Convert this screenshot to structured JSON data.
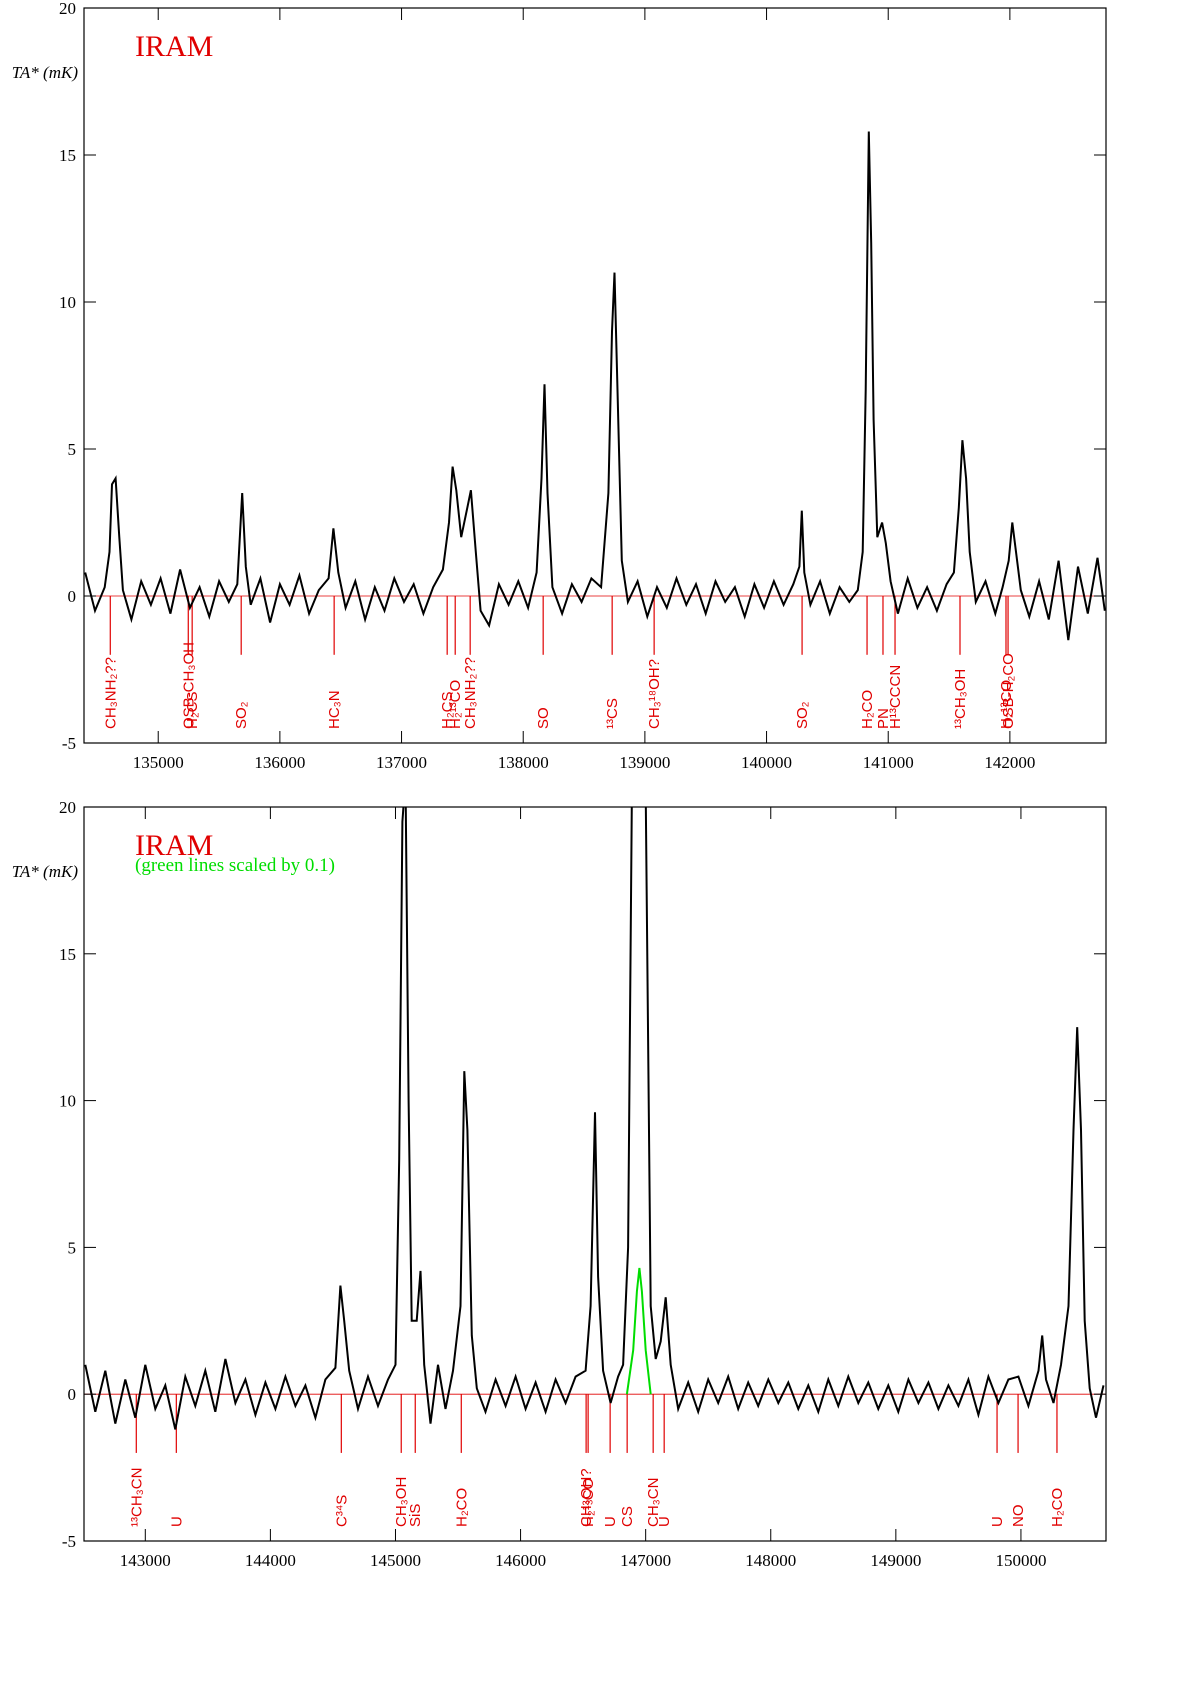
{
  "chart_data": [
    {
      "type": "line",
      "ylabel": "TA* (mK)",
      "annotations": [
        {
          "text": "IRAM",
          "color": "#e00000"
        }
      ],
      "xlim": [
        134390,
        142790
      ],
      "ylim": [
        -5,
        20
      ],
      "xticks": [
        135000,
        136000,
        137000,
        138000,
        139000,
        140000,
        141000,
        142000
      ],
      "yticks": [
        -5,
        0,
        5,
        10,
        15,
        20
      ],
      "series": [
        {
          "color": "#000000",
          "x": [
            134400,
            134480,
            134560,
            134600,
            134620,
            134650,
            134680,
            134710,
            134780,
            134860,
            134940,
            135020,
            135100,
            135180,
            135260,
            135340,
            135420,
            135500,
            135580,
            135650,
            135690,
            135720,
            135760,
            135840,
            135920,
            136000,
            136080,
            136160,
            136240,
            136320,
            136400,
            136440,
            136480,
            136540,
            136620,
            136700,
            136780,
            136860,
            136940,
            137020,
            137100,
            137180,
            137260,
            137340,
            137390,
            137420,
            137450,
            137490,
            137540,
            137570,
            137610,
            137650,
            137720,
            137800,
            137880,
            137960,
            138040,
            138110,
            138150,
            138175,
            138200,
            138240,
            138320,
            138400,
            138480,
            138560,
            138640,
            138700,
            138730,
            138750,
            138775,
            138810,
            138860,
            138940,
            139020,
            139100,
            139180,
            139260,
            139340,
            139420,
            139500,
            139580,
            139660,
            139740,
            139820,
            139900,
            139980,
            140060,
            140140,
            140220,
            140270,
            140290,
            140310,
            140360,
            140440,
            140520,
            140600,
            140680,
            140750,
            140790,
            140815,
            140840,
            140860,
            140880,
            140910,
            140950,
            140980,
            141020,
            141080,
            141160,
            141240,
            141320,
            141400,
            141480,
            141540,
            141580,
            141610,
            141640,
            141670,
            141720,
            141800,
            141880,
            141940,
            141990,
            142020,
            142050,
            142090,
            142160,
            142240,
            142320,
            142400,
            142480,
            142560,
            142640,
            142720,
            142780
          ],
          "values": [
            0.8,
            -0.5,
            0.3,
            1.5,
            3.8,
            4.0,
            2.0,
            0.2,
            -0.8,
            0.5,
            -0.3,
            0.6,
            -0.6,
            0.9,
            -0.4,
            0.3,
            -0.7,
            0.5,
            -0.2,
            0.4,
            3.5,
            1.0,
            -0.3,
            0.6,
            -0.9,
            0.4,
            -0.3,
            0.7,
            -0.6,
            0.2,
            0.6,
            2.3,
            0.8,
            -0.4,
            0.5,
            -0.8,
            0.3,
            -0.5,
            0.6,
            -0.2,
            0.4,
            -0.6,
            0.3,
            0.9,
            2.5,
            4.4,
            3.6,
            2.0,
            3.0,
            3.6,
            1.5,
            -0.5,
            -1.0,
            0.4,
            -0.3,
            0.5,
            -0.4,
            0.8,
            4.0,
            7.2,
            3.5,
            0.3,
            -0.6,
            0.4,
            -0.2,
            0.6,
            0.3,
            3.5,
            9.0,
            11.0,
            7.0,
            1.2,
            -0.2,
            0.5,
            -0.7,
            0.3,
            -0.4,
            0.6,
            -0.3,
            0.4,
            -0.6,
            0.5,
            -0.2,
            0.3,
            -0.7,
            0.4,
            -0.4,
            0.5,
            -0.3,
            0.4,
            1.0,
            2.9,
            0.8,
            -0.3,
            0.5,
            -0.6,
            0.3,
            -0.2,
            0.2,
            1.5,
            7.0,
            15.8,
            12.0,
            6.0,
            2.0,
            2.5,
            1.8,
            0.5,
            -0.6,
            0.6,
            -0.4,
            0.3,
            -0.5,
            0.4,
            0.8,
            3.0,
            5.3,
            4.0,
            1.5,
            -0.2,
            0.5,
            -0.6,
            0.3,
            1.2,
            2.5,
            1.5,
            0.2,
            -0.7,
            0.5,
            -0.8,
            1.2,
            -1.5,
            1.0,
            -0.6,
            1.3,
            -0.5
          ]
        }
      ],
      "markers": {
        "color": "#e00000",
        "x": [
          134606,
          135247,
          135279,
          135682,
          136446,
          137375,
          137441,
          137564,
          138164,
          138731,
          139076,
          140292,
          140826,
          140957,
          141056,
          141590,
          141968,
          141985
        ],
        "labels": [
          "CH₃NH₂??",
          "OSB-CH₃OH",
          "H₂CS",
          "SO₂",
          "HC₃N",
          "H₂CS",
          "H₂¹³CO",
          "CH₃NH₂??",
          "SO",
          "¹³CS",
          "CH₃¹⁸OH?",
          "SO₂",
          "H₂CO",
          "PN",
          "H¹³CCCN",
          "¹³CH₃OH",
          "H₂¹³CO",
          "OSB-H₂CO"
        ]
      }
    },
    {
      "type": "line",
      "ylabel": "TA* (mK)",
      "annotations": [
        {
          "text": "IRAM",
          "color": "#e00000"
        },
        {
          "text": "(green lines scaled by 0.1)",
          "color": "#00dd00"
        }
      ],
      "xlim": [
        142510,
        150680
      ],
      "ylim": [
        -5,
        20
      ],
      "xticks": [
        143000,
        144000,
        145000,
        146000,
        147000,
        148000,
        149000,
        150000
      ],
      "yticks": [
        -5,
        0,
        5,
        10,
        15,
        20
      ],
      "series": [
        {
          "color": "#000000",
          "x": [
            142520,
            142600,
            142680,
            142760,
            142840,
            142920,
            143000,
            143080,
            143160,
            143240,
            143320,
            143400,
            143480,
            143560,
            143640,
            143720,
            143800,
            143880,
            143960,
            144040,
            144120,
            144200,
            144280,
            144360,
            144440,
            144520,
            144560,
            144590,
            144630,
            144700,
            144780,
            144860,
            144940,
            145000,
            145030,
            145055,
            145080,
            145105,
            145130,
            145170,
            145200,
            145230,
            145280,
            145340,
            145400,
            145460,
            145520,
            145550,
            145575,
            145610,
            145650,
            145720,
            145800,
            145880,
            145960,
            146040,
            146120,
            146200,
            146280,
            146360,
            146440,
            146520,
            146560,
            146595,
            146620,
            146660,
            146720,
            146780,
            146820,
            146860,
            146890,
            146950,
            147000,
            147040,
            147080,
            147120,
            147160,
            147200,
            147260,
            147340,
            147420,
            147500,
            147580,
            147660,
            147740,
            147820,
            147900,
            147980,
            148060,
            148140,
            148220,
            148300,
            148380,
            148460,
            148540,
            148620,
            148700,
            148780,
            148860,
            148940,
            149020,
            149100,
            149180,
            149260,
            149340,
            149420,
            149500,
            149580,
            149660,
            149740,
            149820,
            149900,
            149980,
            150060,
            150140,
            150170,
            150200,
            150260,
            150320,
            150380,
            150420,
            150450,
            150480,
            150510,
            150550,
            150600,
            150660
          ],
          "values": [
            1.0,
            -0.6,
            0.8,
            -1.0,
            0.5,
            -0.8,
            1.0,
            -0.5,
            0.3,
            -1.2,
            0.6,
            -0.4,
            0.8,
            -0.6,
            1.2,
            -0.3,
            0.5,
            -0.7,
            0.4,
            -0.5,
            0.6,
            -0.4,
            0.3,
            -0.8,
            0.5,
            0.9,
            3.7,
            2.5,
            0.8,
            -0.5,
            0.6,
            -0.4,
            0.5,
            1.0,
            8.0,
            19.5,
            21.0,
            10.0,
            2.5,
            2.5,
            4.2,
            1.0,
            -1.0,
            1.0,
            -0.5,
            0.8,
            3.0,
            11.0,
            9.0,
            2.0,
            0.2,
            -0.6,
            0.5,
            -0.4,
            0.6,
            -0.5,
            0.4,
            -0.6,
            0.5,
            -0.3,
            0.6,
            0.8,
            3.0,
            9.6,
            4.0,
            0.8,
            -0.3,
            0.6,
            1.0,
            5.0,
            20.5,
            21.0,
            20.5,
            3.0,
            1.2,
            1.8,
            3.3,
            1.0,
            -0.5,
            0.4,
            -0.6,
            0.5,
            -0.3,
            0.6,
            -0.5,
            0.4,
            -0.4,
            0.5,
            -0.3,
            0.4,
            -0.5,
            0.3,
            -0.6,
            0.5,
            -0.4,
            0.6,
            -0.3,
            0.4,
            -0.5,
            0.3,
            -0.6,
            0.5,
            -0.3,
            0.4,
            -0.5,
            0.3,
            -0.4,
            0.5,
            -0.7,
            0.6,
            -0.3,
            0.5,
            0.6,
            -0.4,
            0.8,
            2.0,
            0.5,
            -0.3,
            1.0,
            3.0,
            9.0,
            12.5,
            9.0,
            2.5,
            0.2,
            -0.8,
            0.3
          ]
        },
        {
          "color": "#00dd00",
          "x": [
            146850,
            146900,
            146930,
            146950,
            146970,
            147000,
            147040
          ],
          "values": [
            0,
            1.5,
            3.5,
            4.3,
            3.5,
            1.5,
            0
          ]
        }
      ],
      "markers": {
        "color": "#e00000",
        "x": [
          142928,
          143248,
          144567,
          145046,
          145158,
          145526,
          146524,
          146540,
          146716,
          146852,
          147060,
          147148,
          149809,
          149977,
          150288
        ],
        "labels": [
          "¹³CH₃CN",
          "U",
          "C³⁴S",
          "CH₃OH",
          "SiS",
          "H₂CO",
          "CH₃OH?",
          "H₂¹³CO",
          "U",
          "CS",
          "CH₃CN",
          "U",
          "U",
          "NO",
          "H₂CO"
        ]
      }
    }
  ]
}
